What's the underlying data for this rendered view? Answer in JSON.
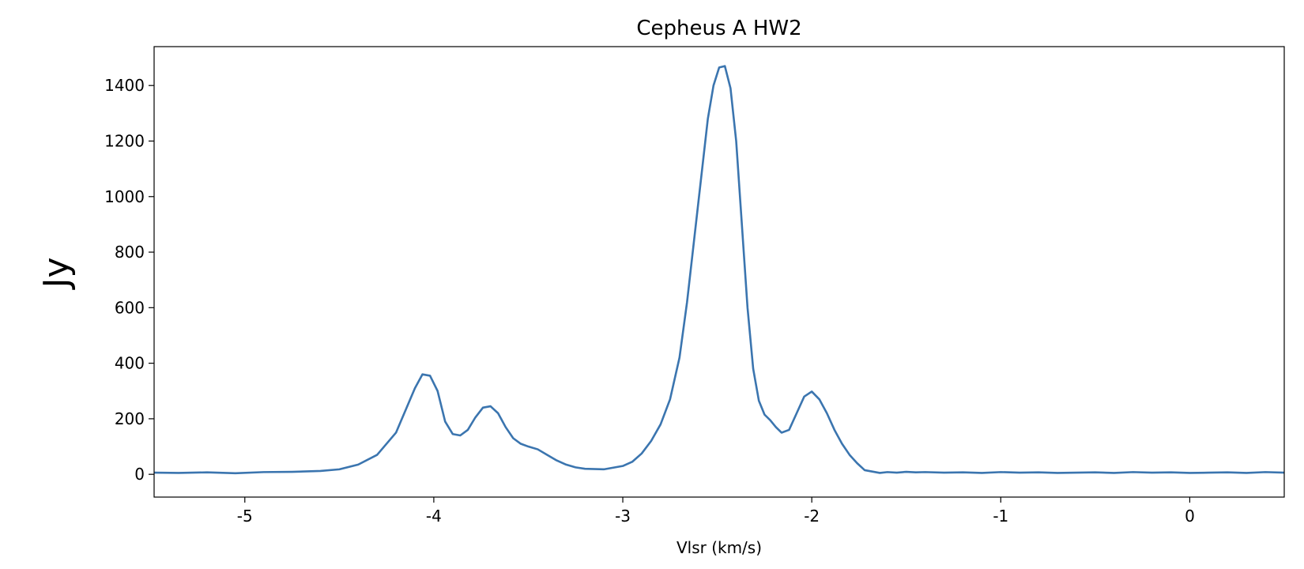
{
  "chart_data": {
    "type": "line",
    "title": "Cepheus A HW2",
    "xlabel": "Vlsr (km/s)",
    "ylabel": "Jy",
    "xlim": [
      -5.48,
      0.5
    ],
    "ylim": [
      -82,
      1540
    ],
    "xticks": [
      -5,
      -4,
      -3,
      -2,
      -1,
      0
    ],
    "xtick_labels": [
      "-5",
      "-4",
      "-3",
      "-2",
      "-1",
      "0"
    ],
    "yticks": [
      0,
      200,
      400,
      600,
      800,
      1000,
      1200,
      1400
    ],
    "ytick_labels": [
      "0",
      "200",
      "400",
      "600",
      "800",
      "1000",
      "1200",
      "1400"
    ],
    "grid": false,
    "series": [
      {
        "color": "#3b75af",
        "x": [
          -5.48,
          -5.35,
          -5.2,
          -5.05,
          -4.9,
          -4.75,
          -4.6,
          -4.5,
          -4.4,
          -4.3,
          -4.2,
          -4.15,
          -4.1,
          -4.06,
          -4.02,
          -3.98,
          -3.94,
          -3.9,
          -3.86,
          -3.82,
          -3.78,
          -3.74,
          -3.7,
          -3.66,
          -3.62,
          -3.58,
          -3.54,
          -3.5,
          -3.45,
          -3.4,
          -3.35,
          -3.3,
          -3.25,
          -3.2,
          -3.1,
          -3.0,
          -2.95,
          -2.9,
          -2.85,
          -2.8,
          -2.75,
          -2.7,
          -2.66,
          -2.62,
          -2.58,
          -2.55,
          -2.52,
          -2.49,
          -2.46,
          -2.43,
          -2.4,
          -2.37,
          -2.34,
          -2.31,
          -2.28,
          -2.25,
          -2.22,
          -2.19,
          -2.16,
          -2.12,
          -2.08,
          -2.04,
          -2.0,
          -1.96,
          -1.92,
          -1.88,
          -1.84,
          -1.8,
          -1.76,
          -1.72,
          -1.68,
          -1.64,
          -1.6,
          -1.55,
          -1.5,
          -1.45,
          -1.4,
          -1.3,
          -1.2,
          -1.1,
          -1.0,
          -0.9,
          -0.8,
          -0.7,
          -0.6,
          -0.5,
          -0.4,
          -0.3,
          -0.2,
          -0.1,
          0.0,
          0.1,
          0.2,
          0.3,
          0.4,
          0.5
        ],
        "y": [
          6,
          5,
          7,
          4,
          8,
          9,
          12,
          18,
          35,
          70,
          150,
          230,
          310,
          360,
          355,
          300,
          190,
          145,
          140,
          160,
          205,
          240,
          245,
          220,
          170,
          130,
          110,
          100,
          90,
          70,
          50,
          35,
          25,
          20,
          18,
          30,
          45,
          75,
          120,
          180,
          270,
          420,
          620,
          860,
          1100,
          1280,
          1400,
          1465,
          1470,
          1390,
          1200,
          900,
          600,
          380,
          265,
          215,
          195,
          170,
          150,
          160,
          220,
          280,
          298,
          270,
          220,
          160,
          110,
          70,
          40,
          15,
          10,
          5,
          8,
          6,
          9,
          7,
          8,
          6,
          7,
          5,
          8,
          6,
          7,
          5,
          6,
          7,
          5,
          8,
          6,
          7,
          5,
          6,
          7,
          5,
          8,
          6
        ]
      }
    ]
  }
}
